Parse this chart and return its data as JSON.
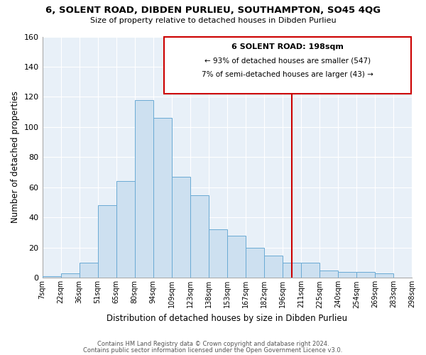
{
  "title1": "6, SOLENT ROAD, DIBDEN PURLIEU, SOUTHAMPTON, SO45 4QG",
  "title2": "Size of property relative to detached houses in Dibden Purlieu",
  "xlabel": "Distribution of detached houses by size in Dibden Purlieu",
  "ylabel": "Number of detached properties",
  "bin_labels": [
    "7sqm",
    "22sqm",
    "36sqm",
    "51sqm",
    "65sqm",
    "80sqm",
    "94sqm",
    "109sqm",
    "123sqm",
    "138sqm",
    "153sqm",
    "167sqm",
    "182sqm",
    "196sqm",
    "211sqm",
    "225sqm",
    "240sqm",
    "254sqm",
    "269sqm",
    "283sqm",
    "298sqm"
  ],
  "bar_heights": [
    1,
    3,
    10,
    48,
    64,
    118,
    106,
    67,
    55,
    32,
    28,
    20,
    15,
    10,
    10,
    5,
    4,
    4,
    3,
    0
  ],
  "bar_color": "#cde0f0",
  "bar_edge_color": "#6aaad4",
  "vline_color": "#cc0000",
  "ylim": [
    0,
    160
  ],
  "yticks": [
    0,
    20,
    40,
    60,
    80,
    100,
    120,
    140,
    160
  ],
  "annotation_title": "6 SOLENT ROAD: 198sqm",
  "annotation_line1": "← 93% of detached houses are smaller (547)",
  "annotation_line2": "7% of semi-detached houses are larger (43) →",
  "footer1": "Contains HM Land Registry data © Crown copyright and database right 2024.",
  "footer2": "Contains public sector information licensed under the Open Government Licence v3.0.",
  "background_color": "#ffffff",
  "plot_bg_color": "#e8f0f8",
  "grid_color": "#ffffff"
}
